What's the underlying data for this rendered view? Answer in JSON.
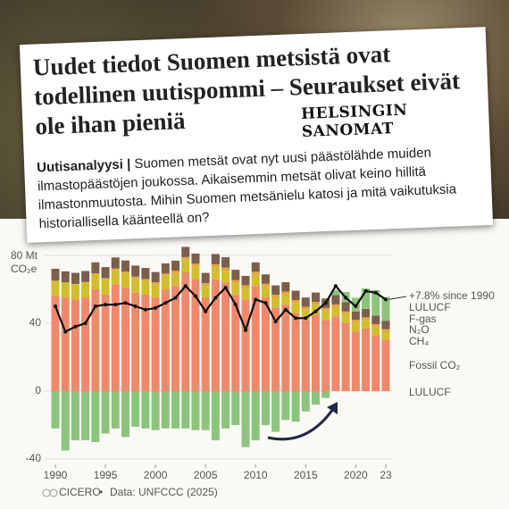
{
  "clipping": {
    "headline": "Uudet tiedot Suomen metsistä ovat todellinen uutispommi – Seuraukset eivät ole ihan pieniä",
    "brand": "HELSINGIN SANOMAT",
    "label": "Uutisanalyysi |",
    "body": "Suomen metsät ovat nyt uusi päästölähde muiden ilmastopäästöjen joukossa. Aikaisemmin metsät olivat keino hillitä ilmastonmuutosta. Mihin Suomen metsänielu katosi ja mitä vaikutuksia historiallisella käänteellä on?"
  },
  "chart_data": {
    "type": "stacked-bar",
    "y_unit": "CO₂e",
    "x": [
      1990,
      1991,
      1992,
      1993,
      1994,
      1995,
      1996,
      1997,
      1998,
      1999,
      2000,
      2001,
      2002,
      2003,
      2004,
      2005,
      2006,
      2007,
      2008,
      2009,
      2010,
      2011,
      2012,
      2013,
      2014,
      2015,
      2016,
      2017,
      2018,
      2019,
      2020,
      2021,
      2022,
      2023
    ],
    "series": [
      {
        "name": "Fossil CO₂",
        "color": "#f0886c",
        "values": [
          56,
          55,
          54,
          55,
          60,
          57,
          63,
          61,
          58,
          57,
          55,
          60,
          62,
          70,
          66,
          55,
          66,
          64,
          57,
          54,
          62,
          55,
          49,
          51,
          46,
          42,
          45,
          42,
          44,
          40,
          35,
          37,
          33,
          30
        ]
      },
      {
        "name": "CH₄",
        "color": "#d2be2c",
        "values": [
          9,
          9,
          9,
          9,
          9,
          9,
          8.5,
          8.5,
          8.5,
          8,
          8,
          8,
          7.5,
          7.5,
          7.5,
          7,
          7,
          7,
          6.5,
          6.5,
          6.5,
          6.5,
          6,
          6,
          6,
          6,
          6,
          5.5,
          5.5,
          5.5,
          5.5,
          5,
          5,
          5
        ]
      },
      {
        "name": "F-gas",
        "color": "#e9a23c",
        "values": [
          0.1,
          0.1,
          0.2,
          0.3,
          0.4,
          0.6,
          0.8,
          1,
          1,
          1.1,
          1.2,
          1.3,
          1.4,
          1.5,
          1.6,
          1.7,
          1.8,
          1.9,
          2,
          1.9,
          1.9,
          1.8,
          1.8,
          1.7,
          1.7,
          1.7,
          1.6,
          1.6,
          1.6,
          1.5,
          1.5,
          1.5,
          1.5,
          1.5
        ]
      },
      {
        "name": "N₂O",
        "color": "#7b5e4c",
        "values": [
          7,
          6.5,
          6.5,
          6.5,
          6.5,
          6.5,
          6.5,
          6.5,
          6.5,
          6.5,
          6,
          6,
          6,
          6,
          6,
          6,
          6,
          6,
          6,
          5.5,
          5.5,
          5.5,
          5.5,
          5.5,
          5.5,
          5.5,
          5.5,
          5.5,
          5.5,
          5.5,
          5,
          5,
          5,
          5
        ]
      },
      {
        "name": "LULUCF",
        "color": "#8cc47e",
        "values": [
          -22,
          -35,
          -29,
          -29,
          -30,
          -25,
          -22,
          -27,
          -21,
          -22,
          -23,
          -22,
          -22,
          -22,
          -23,
          -23,
          -29,
          -22,
          -20,
          -33,
          -29,
          -20,
          -24,
          -17,
          -18,
          -12,
          -8,
          -4,
          3,
          6,
          8,
          12,
          15,
          14
        ]
      }
    ],
    "net": {
      "color": "#111111",
      "values": [
        50,
        35,
        38,
        40,
        50,
        51,
        51,
        52,
        50,
        48,
        49,
        52,
        55,
        62,
        56,
        47,
        55,
        61,
        51,
        36,
        54,
        52,
        41,
        48,
        43,
        43,
        47,
        52,
        62,
        55,
        50,
        59,
        58,
        54
      ],
      "annotation": "+7.8% since 1990"
    },
    "xlim": [
      1989.5,
      2023.5
    ],
    "xticks": [
      1990,
      1995,
      2000,
      2005,
      2010,
      2015,
      2020,
      {
        "value": 2023,
        "label": "23"
      }
    ],
    "ylim": [
      -42,
      82
    ],
    "yticks": [
      {
        "value": -40,
        "label": "-40"
      },
      0,
      40,
      {
        "value": 80,
        "label": "80 Mt"
      }
    ],
    "grid": true
  },
  "footer": {
    "brand": "CICERO",
    "source": "Data: UNFCCC (2025)"
  }
}
